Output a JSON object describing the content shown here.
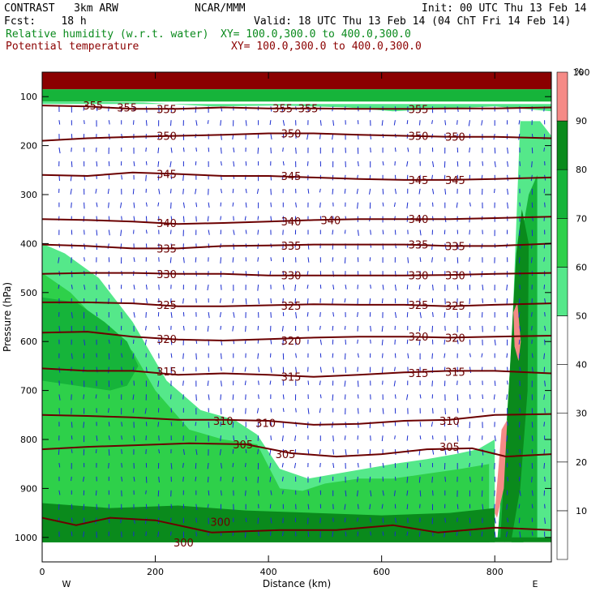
{
  "header": {
    "model": "CONTRAST   3km ARW",
    "center": "NCAR/MMM",
    "init": "Init: 00 UTC Thu 13 Feb 14",
    "fcst": "Fcst:    18 h",
    "valid": "Valid: 18 UTC Thu 13 Feb 14 (04 ChT Fri 14 Feb 14)",
    "field1_name": "Relative humidity (w.r.t. water)",
    "field1_xy": "XY= 100.0,300.0 to 400.0,300.0",
    "field2_name": "Potential temperature",
    "field2_xy": "XY= 100.0,300.0 to 400.0,300.0"
  },
  "chart_data": {
    "type": "heatmap",
    "xlabel": "Distance (km)",
    "ylabel": "Pressure (hPa)",
    "xlim": [
      0,
      900
    ],
    "ylim": [
      1050,
      50
    ],
    "x_ticks": [
      0,
      200,
      400,
      600,
      800
    ],
    "y_ticks": [
      100,
      200,
      300,
      400,
      500,
      600,
      700,
      800,
      900,
      1000
    ],
    "x_end_labels": {
      "left": "W",
      "right": "E"
    },
    "colorbar": {
      "unit": "%",
      "levels": [
        10,
        20,
        30,
        40,
        50,
        60,
        70,
        80,
        90,
        100
      ],
      "colors": [
        "#ffffff",
        "#ffffff",
        "#ffffff",
        "#ffffff",
        "#ffffff",
        "#55e88a",
        "#2ed04a",
        "#16b43a",
        "#0a8a1c",
        "#f58a86"
      ]
    },
    "rh_regions": [
      {
        "name": "lower-tropospheric moist layer (west)",
        "color": "#55e88a",
        "x": [
          0,
          40,
          100,
          160,
          220,
          280,
          340,
          380,
          420,
          470,
          520,
          570,
          620,
          680,
          730,
          770,
          800,
          800,
          0
        ],
        "p": [
          400,
          420,
          470,
          560,
          680,
          740,
          760,
          790,
          860,
          880,
          870,
          860,
          850,
          840,
          830,
          820,
          800,
          1010,
          1010
        ]
      },
      {
        "name": "moist layer 70-80 west",
        "color": "#2ed04a",
        "x": [
          0,
          50,
          100,
          160,
          200,
          260,
          320,
          380,
          420,
          460,
          500,
          560,
          620,
          680,
          740,
          790,
          790,
          0
        ],
        "p": [
          460,
          500,
          560,
          620,
          700,
          780,
          800,
          810,
          900,
          905,
          890,
          880,
          880,
          870,
          860,
          850,
          1010,
          1010
        ]
      },
      {
        "name": "moist layer 80-90 west",
        "color": "#16b43a",
        "x": [
          0,
          60,
          110,
          150,
          170,
          150,
          120,
          60,
          0
        ],
        "p": [
          510,
          520,
          560,
          600,
          650,
          690,
          700,
          690,
          680
        ]
      },
      {
        "name": "near-surface very moist band",
        "color": "#0a8a1c",
        "x": [
          0,
          120,
          240,
          360,
          480,
          600,
          720,
          800,
          800,
          0
        ],
        "p": [
          930,
          940,
          935,
          945,
          950,
          955,
          950,
          940,
          1010,
          1010
        ]
      },
      {
        "name": "eastern frontal column 60",
        "color": "#55e88a",
        "x": [
          805,
          820,
          830,
          845,
          880,
          900,
          900,
          850,
          830,
          815,
          800
        ],
        "p": [
          1000,
          800,
          600,
          150,
          150,
          180,
          1000,
          1010,
          1010,
          1005,
          1010
        ]
      },
      {
        "name": "eastern frontal column 80",
        "color": "#16b43a",
        "x": [
          805,
          820,
          832,
          842,
          860,
          875,
          875,
          850,
          830,
          815
        ],
        "p": [
          1000,
          780,
          560,
          420,
          300,
          260,
          1000,
          1010,
          1010,
          1005
        ]
      },
      {
        "name": "eastern frontal column 90",
        "color": "#0a8a1c",
        "x": [
          810,
          822,
          832,
          838,
          848,
          860,
          858,
          845,
          830,
          818
        ],
        "p": [
          1000,
          760,
          540,
          420,
          330,
          400,
          700,
          900,
          1000,
          1010
        ]
      },
      {
        "name": "saturated column 1",
        "color": "#f58a86",
        "x": [
          800,
          812,
          822,
          816,
          804
        ],
        "p": [
          950,
          780,
          760,
          900,
          960
        ]
      },
      {
        "name": "saturated column 2",
        "color": "#f58a86",
        "x": [
          833,
          840,
          846,
          842,
          835
        ],
        "p": [
          540,
          520,
          600,
          640,
          610
        ]
      },
      {
        "name": "stratospheric upper band",
        "color": "#8b0000",
        "x": [
          0,
          900,
          900,
          0
        ],
        "p": [
          50,
          50,
          85,
          85
        ]
      },
      {
        "name": "tropopause moist strip",
        "color": "#16b43a",
        "x": [
          0,
          900,
          900,
          0
        ],
        "p": [
          85,
          85,
          110,
          110
        ]
      },
      {
        "name": "tropopause light strip",
        "color": "#55e88a",
        "x": [
          0,
          180,
          300,
          420,
          540,
          620,
          700,
          800,
          900,
          900,
          0
        ],
        "p": [
          110,
          112,
          120,
          118,
          122,
          130,
          125,
          120,
          130,
          115,
          115
        ]
      },
      {
        "name": "surface terrain band",
        "color": "#0a8a1c",
        "x": [
          0,
          900,
          900,
          0
        ],
        "p": [
          1000,
          1000,
          1010,
          1010
        ]
      }
    ],
    "theta_contours": [
      {
        "value": 300,
        "label": "300",
        "p": [
          [
            0,
            960
          ],
          [
            60,
            975
          ],
          [
            120,
            960
          ],
          [
            200,
            965
          ],
          [
            300,
            990
          ],
          [
            420,
            985
          ],
          [
            520,
            985
          ],
          [
            620,
            975
          ],
          [
            700,
            990
          ],
          [
            800,
            980
          ],
          [
            900,
            985
          ]
        ],
        "labels": [
          [
            315,
            968
          ],
          [
            250,
            1010
          ]
        ]
      },
      {
        "value": 305,
        "label": "305",
        "p": [
          [
            0,
            820
          ],
          [
            80,
            815
          ],
          [
            160,
            812
          ],
          [
            260,
            808
          ],
          [
            360,
            810
          ],
          [
            440,
            828
          ],
          [
            520,
            835
          ],
          [
            600,
            830
          ],
          [
            680,
            820
          ],
          [
            760,
            818
          ],
          [
            820,
            835
          ],
          [
            900,
            830
          ]
        ],
        "labels": [
          [
            430,
            830
          ],
          [
            355,
            810
          ],
          [
            720,
            815
          ]
        ]
      },
      {
        "value": 310,
        "label": "310",
        "p": [
          [
            0,
            750
          ],
          [
            80,
            752
          ],
          [
            160,
            755
          ],
          [
            240,
            760
          ],
          [
            320,
            760
          ],
          [
            400,
            762
          ],
          [
            480,
            770
          ],
          [
            560,
            768
          ],
          [
            640,
            762
          ],
          [
            720,
            760
          ],
          [
            800,
            750
          ],
          [
            900,
            748
          ]
        ],
        "labels": [
          [
            320,
            762
          ],
          [
            395,
            766
          ],
          [
            720,
            762
          ]
        ]
      },
      {
        "value": 315,
        "label": "315",
        "p": [
          [
            0,
            655
          ],
          [
            80,
            660
          ],
          [
            160,
            660
          ],
          [
            240,
            668
          ],
          [
            320,
            665
          ],
          [
            400,
            668
          ],
          [
            480,
            672
          ],
          [
            560,
            668
          ],
          [
            640,
            663
          ],
          [
            720,
            660
          ],
          [
            800,
            660
          ],
          [
            900,
            665
          ]
        ],
        "labels": [
          [
            220,
            661
          ],
          [
            440,
            672
          ],
          [
            665,
            664
          ],
          [
            730,
            662
          ]
        ]
      },
      {
        "value": 320,
        "label": "320",
        "p": [
          [
            0,
            582
          ],
          [
            80,
            580
          ],
          [
            160,
            590
          ],
          [
            240,
            596
          ],
          [
            320,
            598
          ],
          [
            400,
            595
          ],
          [
            480,
            592
          ],
          [
            560,
            590
          ],
          [
            640,
            590
          ],
          [
            720,
            592
          ],
          [
            800,
            590
          ],
          [
            900,
            588
          ]
        ],
        "labels": [
          [
            220,
            595
          ],
          [
            440,
            598
          ],
          [
            665,
            590
          ],
          [
            730,
            592
          ]
        ]
      },
      {
        "value": 325,
        "label": "325",
        "p": [
          [
            0,
            520
          ],
          [
            80,
            520
          ],
          [
            160,
            522
          ],
          [
            240,
            528
          ],
          [
            320,
            528
          ],
          [
            400,
            526
          ],
          [
            480,
            524
          ],
          [
            560,
            525
          ],
          [
            640,
            525
          ],
          [
            720,
            528
          ],
          [
            800,
            525
          ],
          [
            900,
            522
          ]
        ],
        "labels": [
          [
            220,
            525
          ],
          [
            440,
            527
          ],
          [
            665,
            525
          ],
          [
            730,
            527
          ]
        ]
      },
      {
        "value": 330,
        "label": "330",
        "p": [
          [
            0,
            462
          ],
          [
            80,
            460
          ],
          [
            160,
            460
          ],
          [
            240,
            462
          ],
          [
            320,
            462
          ],
          [
            400,
            465
          ],
          [
            480,
            465
          ],
          [
            560,
            465
          ],
          [
            640,
            465
          ],
          [
            720,
            464
          ],
          [
            800,
            462
          ],
          [
            900,
            460
          ]
        ],
        "labels": [
          [
            220,
            462
          ],
          [
            440,
            465
          ],
          [
            665,
            465
          ],
          [
            730,
            465
          ]
        ]
      },
      {
        "value": 335,
        "label": "335",
        "p": [
          [
            0,
            402
          ],
          [
            80,
            405
          ],
          [
            160,
            410
          ],
          [
            240,
            410
          ],
          [
            320,
            405
          ],
          [
            400,
            404
          ],
          [
            480,
            402
          ],
          [
            560,
            402
          ],
          [
            640,
            402
          ],
          [
            720,
            405
          ],
          [
            800,
            405
          ],
          [
            900,
            400
          ]
        ],
        "labels": [
          [
            220,
            410
          ],
          [
            440,
            404
          ],
          [
            665,
            402
          ],
          [
            730,
            405
          ]
        ]
      },
      {
        "value": 340,
        "label": "340",
        "p": [
          [
            0,
            350
          ],
          [
            80,
            352
          ],
          [
            160,
            355
          ],
          [
            240,
            360
          ],
          [
            320,
            358
          ],
          [
            400,
            355
          ],
          [
            480,
            352
          ],
          [
            560,
            350
          ],
          [
            640,
            350
          ],
          [
            720,
            350
          ],
          [
            800,
            348
          ],
          [
            900,
            345
          ]
        ],
        "labels": [
          [
            220,
            358
          ],
          [
            440,
            355
          ],
          [
            510,
            352
          ],
          [
            665,
            350
          ]
        ]
      },
      {
        "value": 345,
        "label": "345",
        "p": [
          [
            0,
            260
          ],
          [
            80,
            262
          ],
          [
            160,
            255
          ],
          [
            240,
            258
          ],
          [
            320,
            262
          ],
          [
            400,
            262
          ],
          [
            480,
            265
          ],
          [
            560,
            268
          ],
          [
            640,
            270
          ],
          [
            720,
            270
          ],
          [
            800,
            268
          ],
          [
            900,
            265
          ]
        ],
        "labels": [
          [
            220,
            258
          ],
          [
            440,
            262
          ],
          [
            665,
            270
          ],
          [
            730,
            270
          ]
        ]
      },
      {
        "value": 350,
        "label": "350",
        "p": [
          [
            0,
            190
          ],
          [
            80,
            185
          ],
          [
            160,
            182
          ],
          [
            240,
            180
          ],
          [
            320,
            178
          ],
          [
            400,
            175
          ],
          [
            480,
            175
          ],
          [
            560,
            178
          ],
          [
            640,
            180
          ],
          [
            720,
            182
          ],
          [
            800,
            182
          ],
          [
            900,
            185
          ]
        ],
        "labels": [
          [
            220,
            180
          ],
          [
            440,
            175
          ],
          [
            665,
            180
          ],
          [
            730,
            182
          ]
        ]
      },
      {
        "value": 355,
        "label": "355",
        "p": [
          [
            0,
            118
          ],
          [
            80,
            120
          ],
          [
            160,
            125
          ],
          [
            240,
            125
          ],
          [
            320,
            122
          ],
          [
            400,
            124
          ],
          [
            480,
            124
          ],
          [
            560,
            125
          ],
          [
            640,
            125
          ],
          [
            720,
            124
          ],
          [
            800,
            124
          ],
          [
            900,
            122
          ]
        ],
        "labels": [
          [
            90,
            118
          ],
          [
            150,
            122
          ],
          [
            220,
            125
          ],
          [
            425,
            124
          ],
          [
            470,
            124
          ],
          [
            665,
            125
          ]
        ]
      }
    ]
  }
}
